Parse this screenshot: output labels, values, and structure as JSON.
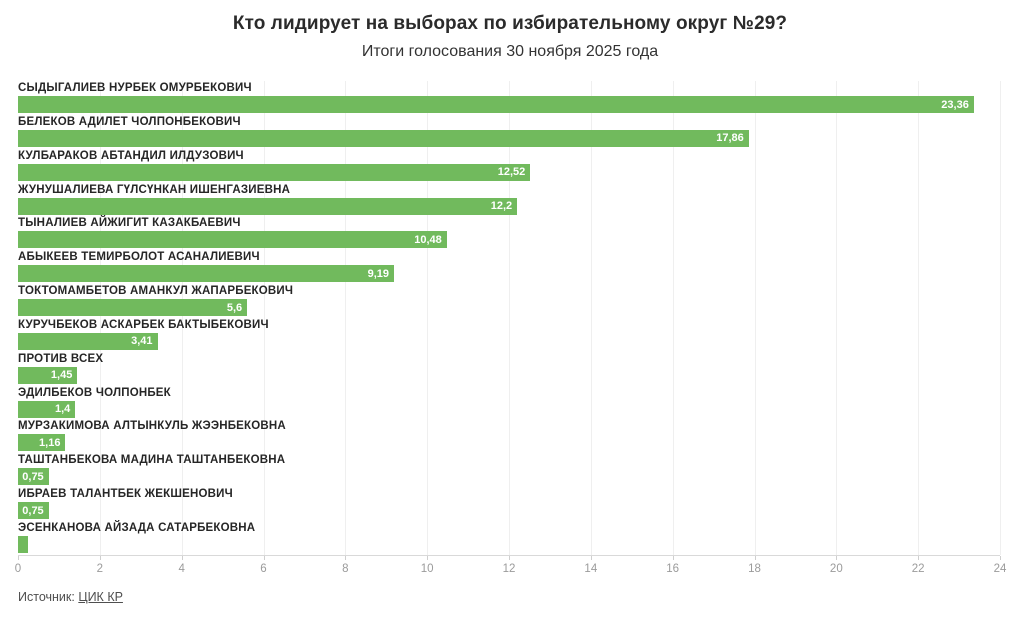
{
  "header": {
    "title": "Кто лидирует на выборах по избирательному округ №29?",
    "subtitle": "Итоги голосования 30 ноября 2025 года"
  },
  "chart_data": {
    "type": "bar",
    "orientation": "horizontal",
    "title": "Кто лидирует на выборах по избирательному округ №29?",
    "subtitle": "Итоги голосования 30 ноября 2025 года",
    "categories": [
      "СЫДЫГАЛИЕВ НУРБЕК ОМУРБЕКОВИЧ",
      "БЕЛЕКОВ АДИЛЕТ ЧОЛПОНБЕКОВИЧ",
      "КУЛБАРАКОВ АБТАНДИЛ ИЛДУЗОВИЧ",
      "ЖУНУШАЛИЕВА ГҮЛСҮНКАН ИШЕНГАЗИЕВНА",
      "ТЫНАЛИЕВ АЙЖИГИТ КАЗАКБАЕВИЧ",
      "АБЫКЕЕВ ТЕМИРБОЛОТ АСАНАЛИЕВИЧ",
      "ТОКТОМАМБЕТОВ АМАНКУЛ ЖАПАРБЕКОВИЧ",
      "КУРУЧБЕКОВ АСКАРБЕК БАКТЫБЕКОВИЧ",
      "ПРОТИВ ВСЕХ",
      "ЭДИЛБЕКОВ ЧОЛПОНБЕК",
      "МУРЗАКИМОВА АЛТЫНКУЛЬ ЖЭЭНБЕКОВНА",
      "ТАШТАНБЕКОВА МАДИНА ТАШТАНБЕКОВНА",
      "ИБРАЕВ ТАЛАНТБЕК ЖЕКШЕНОВИЧ",
      "ЭСЕНКАНОВА АЙЗАДА САТАРБЕКОВНА"
    ],
    "values": [
      23.36,
      17.86,
      12.52,
      12.2,
      10.48,
      9.19,
      5.6,
      3.41,
      1.45,
      1.4,
      1.16,
      0.75,
      0.75,
      0.25
    ],
    "value_labels": [
      "23,36",
      "17,86",
      "12,52",
      "12,2",
      "10,48",
      "9,19",
      "5,6",
      "3,41",
      "1,45",
      "1,4",
      "1,16",
      "0,75",
      "0,75",
      ""
    ],
    "xlabel": "",
    "ylabel": "",
    "xlim": [
      0,
      24
    ],
    "x_ticks": [
      0,
      2,
      4,
      6,
      8,
      10,
      12,
      14,
      16,
      18,
      20,
      22,
      24
    ],
    "x_tick_labels": [
      "0",
      "2",
      "4",
      "6",
      "8",
      "10",
      "12",
      "14",
      "16",
      "18",
      "20",
      "22",
      "24"
    ],
    "grid": true,
    "legend": false,
    "bar_color": "#71ba5d"
  },
  "footer": {
    "source_prefix": "Источник:",
    "source_link": "ЦИК КР"
  },
  "colors": {
    "bar": "#71ba5d",
    "title_text": "#2b2b2b",
    "label_text": "#262626",
    "axis_text": "#9b9b9b",
    "gridline": "#efefef",
    "value_text": "#ffffff"
  }
}
